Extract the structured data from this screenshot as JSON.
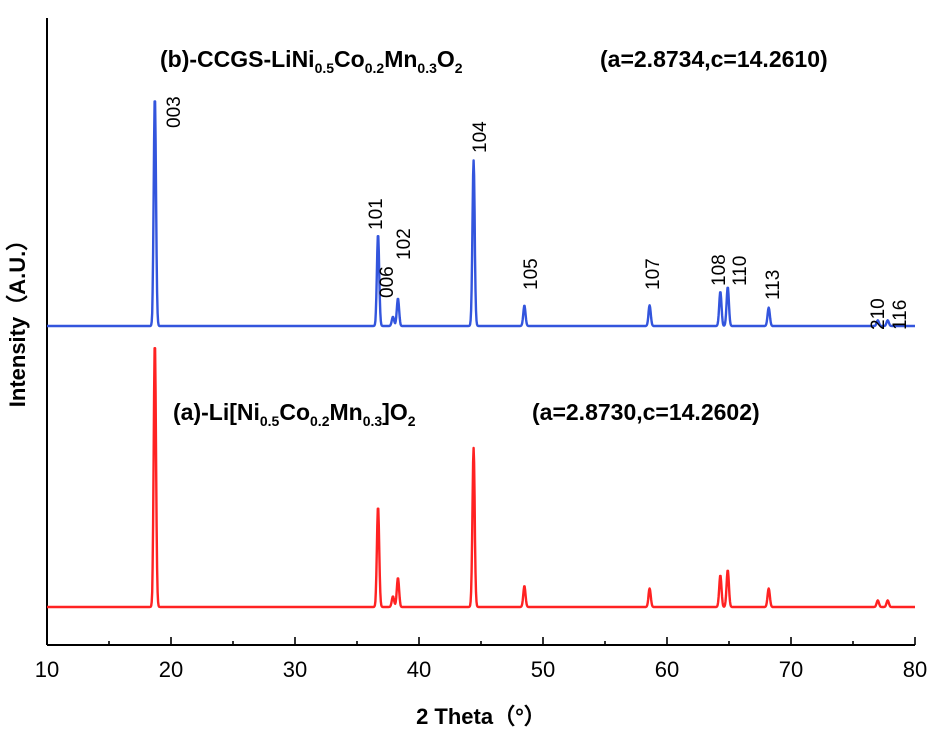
{
  "chart_data": {
    "type": "line",
    "xlabel": "2 Theta（°）",
    "ylabel": "Intensity（A.U.）",
    "xlim": [
      10,
      80
    ],
    "xticks": [
      "10",
      "20",
      "30",
      "40",
      "50",
      "60",
      "70",
      "80"
    ],
    "legend": "none",
    "grid": false,
    "series": [
      {
        "name": "(b)-CCGS-LiNi0.5Co0.2Mn0.3O2",
        "color": "#3355dd",
        "lattice": "(a=2.8734,c=14.2610)",
        "peaks": [
          {
            "x": 18.7,
            "y": 100
          },
          {
            "x": 36.7,
            "y": 40
          },
          {
            "x": 37.9,
            "y": 4
          },
          {
            "x": 38.3,
            "y": 12
          },
          {
            "x": 44.4,
            "y": 72
          },
          {
            "x": 48.5,
            "y": 9
          },
          {
            "x": 58.6,
            "y": 9
          },
          {
            "x": 64.3,
            "y": 15
          },
          {
            "x": 64.9,
            "y": 17
          },
          {
            "x": 68.2,
            "y": 8
          },
          {
            "x": 77.0,
            "y": 2.5
          },
          {
            "x": 77.8,
            "y": 2.5
          }
        ]
      },
      {
        "name": "(a)-Li[Ni0.5Co0.2Mn0.3]O2",
        "color": "#ff2222",
        "lattice": "(a=2.8730,c=14.2602)",
        "peaks": [
          {
            "x": 18.7,
            "y": 100
          },
          {
            "x": 36.7,
            "y": 38
          },
          {
            "x": 37.9,
            "y": 4
          },
          {
            "x": 38.3,
            "y": 11
          },
          {
            "x": 44.4,
            "y": 60
          },
          {
            "x": 48.5,
            "y": 8
          },
          {
            "x": 58.6,
            "y": 7
          },
          {
            "x": 64.3,
            "y": 12
          },
          {
            "x": 64.9,
            "y": 14
          },
          {
            "x": 68.2,
            "y": 7
          },
          {
            "x": 77.0,
            "y": 2.5
          },
          {
            "x": 77.8,
            "y": 2.5
          }
        ]
      }
    ],
    "annotations": [
      {
        "text": "003",
        "x": 18.7
      },
      {
        "text": "101",
        "x": 36.7
      },
      {
        "text": "006",
        "x": 37.9
      },
      {
        "text": "102",
        "x": 38.3
      },
      {
        "text": "104",
        "x": 44.4
      },
      {
        "text": "105",
        "x": 48.5
      },
      {
        "text": "107",
        "x": 58.6
      },
      {
        "text": "108",
        "x": 64.3
      },
      {
        "text": "110",
        "x": 64.9
      },
      {
        "text": "113",
        "x": 68.2
      },
      {
        "text": "210",
        "x": 77.0
      },
      {
        "text": "116",
        "x": 77.8
      }
    ]
  }
}
